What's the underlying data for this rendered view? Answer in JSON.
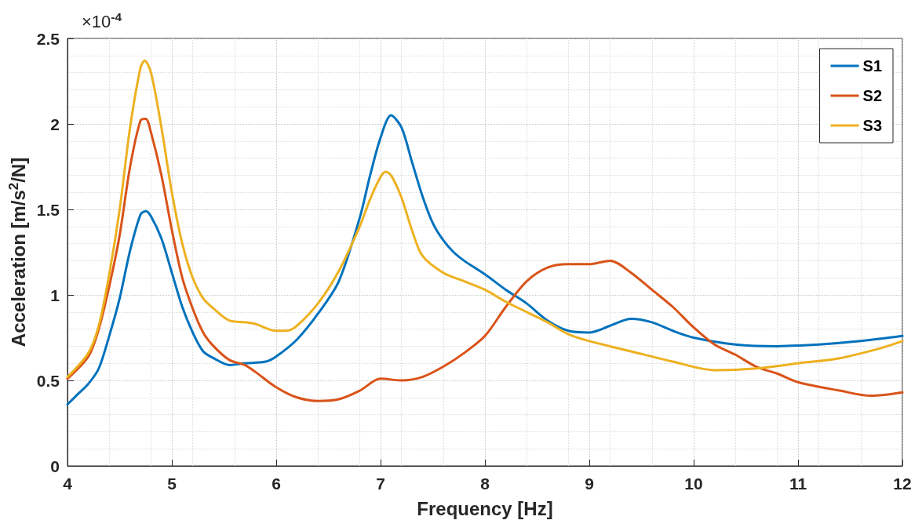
{
  "chart_data": {
    "type": "line",
    "xlabel": "Frequency [Hz]",
    "ylabel": "Acceleration [m/s$^{2}$/N]",
    "annotations": [
      "×10$^{-4}$"
    ],
    "xlim": [
      4,
      12
    ],
    "xticks": [
      4,
      5,
      6,
      7,
      8,
      9,
      10,
      11,
      12
    ],
    "ylim": [
      0,
      2.5
    ],
    "yticks": [
      0,
      0.5,
      1,
      1.5,
      2,
      2.5
    ],
    "grid": true,
    "legend": "top right",
    "marker": "none",
    "line_style": "solid",
    "series": [
      {
        "name": "S1",
        "color": "#0072bd",
        "x": [
          4.0,
          4.1,
          4.2,
          4.3,
          4.4,
          4.5,
          4.6,
          4.7,
          4.75,
          4.8,
          4.9,
          5.0,
          5.1,
          5.2,
          5.3,
          5.4,
          5.55,
          5.7,
          5.9,
          6.0,
          6.2,
          6.4,
          6.6,
          6.8,
          6.9,
          7.0,
          7.1,
          7.2,
          7.3,
          7.4,
          7.5,
          7.6,
          7.7,
          7.8,
          8.0,
          8.2,
          8.4,
          8.6,
          8.8,
          9.0,
          9.2,
          9.4,
          9.6,
          9.8,
          10.0,
          10.4,
          10.8,
          11.2,
          11.6,
          12.0
        ],
        "values": [
          0.36,
          0.42,
          0.48,
          0.57,
          0.76,
          0.98,
          1.26,
          1.47,
          1.49,
          1.46,
          1.33,
          1.13,
          0.93,
          0.78,
          0.67,
          0.63,
          0.59,
          0.6,
          0.61,
          0.64,
          0.74,
          0.89,
          1.08,
          1.45,
          1.7,
          1.92,
          2.05,
          1.98,
          1.78,
          1.58,
          1.42,
          1.32,
          1.25,
          1.2,
          1.12,
          1.03,
          0.95,
          0.85,
          0.79,
          0.78,
          0.82,
          0.86,
          0.84,
          0.79,
          0.75,
          0.71,
          0.7,
          0.71,
          0.73,
          0.76
        ]
      },
      {
        "name": "S2",
        "color": "#d95319",
        "x": [
          4.0,
          4.2,
          4.3,
          4.4,
          4.5,
          4.6,
          4.7,
          4.75,
          4.8,
          4.9,
          5.0,
          5.1,
          5.2,
          5.3,
          5.4,
          5.55,
          5.7,
          5.8,
          6.0,
          6.2,
          6.4,
          6.6,
          6.8,
          7.0,
          7.2,
          7.4,
          7.6,
          7.8,
          8.0,
          8.2,
          8.4,
          8.6,
          8.8,
          9.0,
          9.2,
          9.4,
          9.6,
          9.8,
          10.0,
          10.2,
          10.4,
          10.6,
          10.8,
          11.0,
          11.4,
          11.7,
          12.0
        ],
        "values": [
          0.51,
          0.64,
          0.8,
          1.05,
          1.35,
          1.75,
          2.02,
          2.03,
          1.95,
          1.7,
          1.38,
          1.1,
          0.92,
          0.78,
          0.7,
          0.62,
          0.59,
          0.55,
          0.46,
          0.4,
          0.38,
          0.39,
          0.44,
          0.51,
          0.5,
          0.52,
          0.58,
          0.66,
          0.76,
          0.93,
          1.08,
          1.16,
          1.18,
          1.18,
          1.2,
          1.13,
          1.03,
          0.93,
          0.81,
          0.71,
          0.65,
          0.58,
          0.54,
          0.49,
          0.44,
          0.41,
          0.43
        ]
      },
      {
        "name": "S3",
        "color": "#edb120",
        "x": [
          4.0,
          4.2,
          4.3,
          4.4,
          4.5,
          4.6,
          4.7,
          4.74,
          4.8,
          4.9,
          5.0,
          5.1,
          5.2,
          5.3,
          5.4,
          5.55,
          5.7,
          5.8,
          6.0,
          6.1,
          6.2,
          6.4,
          6.6,
          6.8,
          6.9,
          7.0,
          7.05,
          7.1,
          7.2,
          7.3,
          7.4,
          7.6,
          7.8,
          8.0,
          8.2,
          8.4,
          8.6,
          8.8,
          9.0,
          9.4,
          9.8,
          10.2,
          10.6,
          11.0,
          11.4,
          11.8,
          12.0
        ],
        "values": [
          0.52,
          0.66,
          0.82,
          1.12,
          1.5,
          1.98,
          2.33,
          2.37,
          2.3,
          1.98,
          1.6,
          1.3,
          1.1,
          0.98,
          0.92,
          0.85,
          0.84,
          0.83,
          0.79,
          0.79,
          0.82,
          0.95,
          1.14,
          1.4,
          1.56,
          1.69,
          1.72,
          1.7,
          1.57,
          1.38,
          1.23,
          1.13,
          1.08,
          1.03,
          0.96,
          0.9,
          0.84,
          0.77,
          0.73,
          0.67,
          0.61,
          0.56,
          0.57,
          0.6,
          0.63,
          0.69,
          0.73
        ]
      }
    ]
  }
}
